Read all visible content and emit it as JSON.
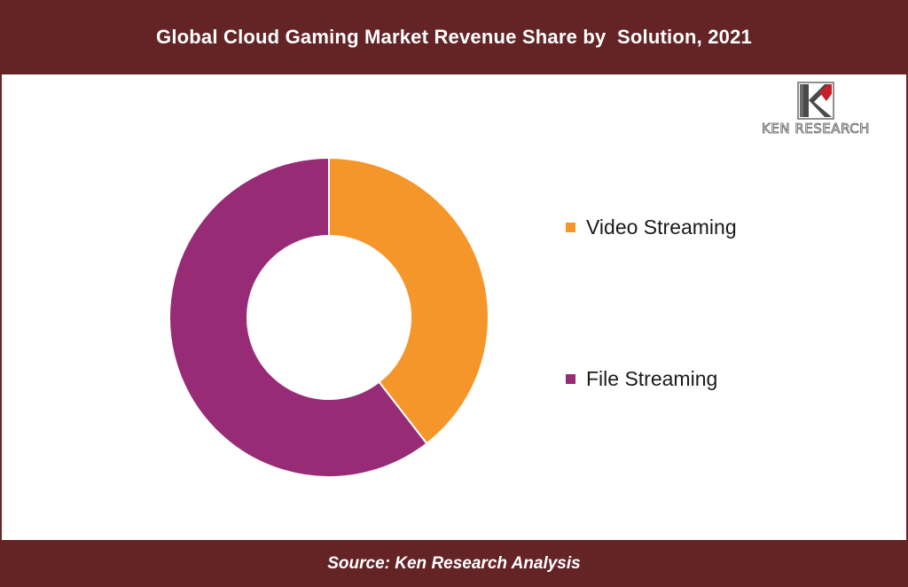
{
  "header": {
    "title": "Global Cloud Gaming Market Revenue Share by  Solution, 2021"
  },
  "footer": {
    "source": "Source: Ken Research Analysis"
  },
  "logo": {
    "name": "KEN RESEARCH",
    "mark_icon": "ken-research-k-logo"
  },
  "colors": {
    "brand_bar": "#642426",
    "video": "#f5962a",
    "file": "#972b75"
  },
  "chart_data": {
    "type": "pie",
    "variant": "donut",
    "title": "Global Cloud Gaming Market Revenue Share by  Solution, 2021",
    "categories": [
      "Video Streaming",
      "File Streaming"
    ],
    "values": [
      39.5,
      60.5
    ],
    "unit": "%",
    "colors": [
      "#f5962a",
      "#972b75"
    ],
    "legend_position": "right",
    "data_labels": false
  }
}
